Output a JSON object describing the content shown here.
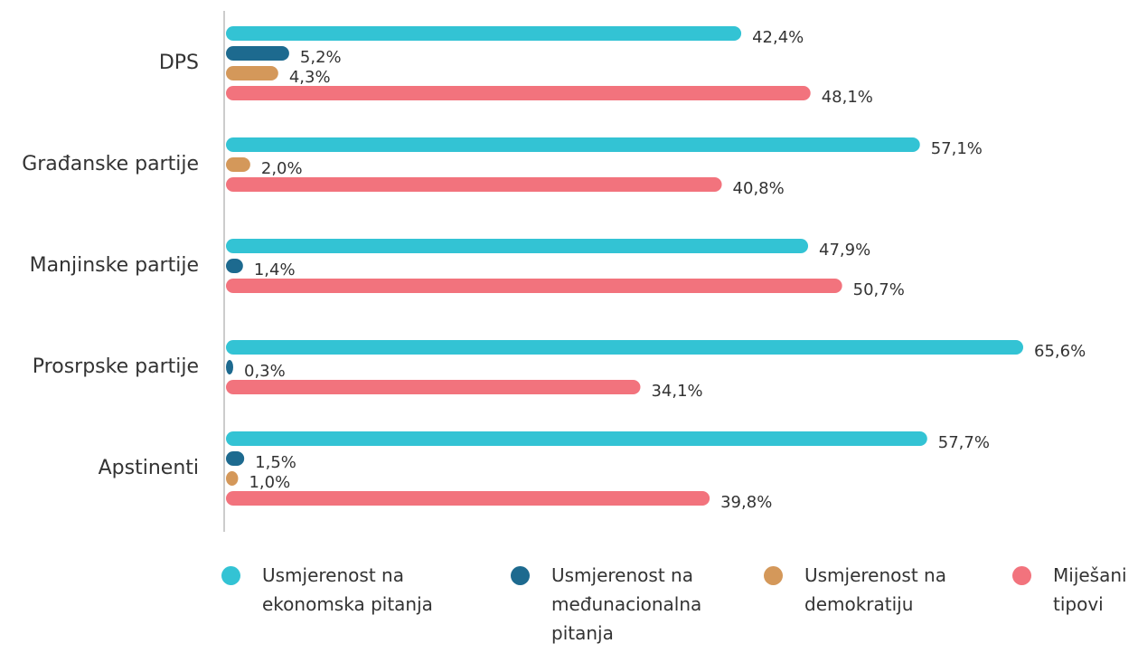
{
  "chart_data": {
    "type": "barh",
    "categories": [
      "DPS",
      "Građanske partije",
      "Manjinske partije",
      "Prosrpske partije",
      "Apstinenti"
    ],
    "series": [
      {
        "name": "Usmjerenost na ekonomska pitanja",
        "color": "#33c3d4",
        "values": [
          42.4,
          57.1,
          47.9,
          65.6,
          57.7
        ],
        "value_labels": [
          "42,4%",
          "57,1%",
          "47,9%",
          "65,6%",
          "57,7%"
        ]
      },
      {
        "name": "Usmjerenost na međunacionalna pitanja",
        "color": "#1d6a8f",
        "values": [
          5.2,
          null,
          1.4,
          0.3,
          1.5
        ],
        "value_labels": [
          "5,2%",
          null,
          "1,4%",
          "0,3%",
          "1,5%"
        ]
      },
      {
        "name": "Usmjerenost na demokratiju",
        "color": "#d4985a",
        "values": [
          4.3,
          2.0,
          null,
          null,
          1.0
        ],
        "value_labels": [
          "4,3%",
          "2,0%",
          null,
          null,
          "1,0%"
        ]
      },
      {
        "name": "Miješani tipovi",
        "color": "#f2737d",
        "values": [
          48.1,
          40.8,
          50.7,
          34.1,
          39.8
        ],
        "value_labels": [
          "48,1%",
          "40,8%",
          "50,7%",
          "34,1%",
          "39,8%"
        ]
      }
    ],
    "legend": "bottom"
  }
}
